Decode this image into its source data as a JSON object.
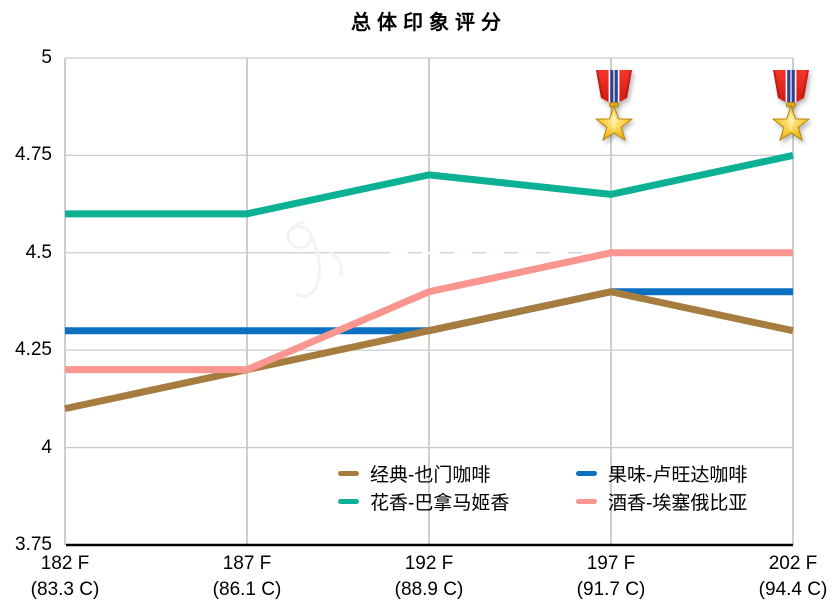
{
  "chart_data": {
    "type": "line",
    "title": "总体印象评分",
    "categories": [
      "182 F",
      "187 F",
      "192 F",
      "197 F",
      "202 F"
    ],
    "categories_sub": [
      "(83.3 C)",
      "(86.1 C)",
      "(88.9 C)",
      "(91.7 C)",
      "(94.4 C)"
    ],
    "xlabel": "",
    "ylabel": "",
    "ylim": [
      3.75,
      5
    ],
    "y_ticks": [
      "5",
      "4.75",
      "4.5",
      "4.25",
      "4",
      "3.75"
    ],
    "grid": true,
    "legend_position": "inside-bottom",
    "series": [
      {
        "name": "经典-也门咖啡",
        "color": "#a77c3f",
        "values": [
          4.1,
          4.2,
          4.3,
          4.4,
          4.3
        ]
      },
      {
        "name": "果味-卢旺达咖啡",
        "color": "#0b70c0",
        "values": [
          4.3,
          4.3,
          4.3,
          4.4,
          4.4
        ]
      },
      {
        "name": "花香-巴拿马姬香",
        "color": "#0cb194",
        "values": [
          4.6,
          4.6,
          4.7,
          4.65,
          4.75
        ]
      },
      {
        "name": "酒香-埃塞俄比亚",
        "color": "#fa968f",
        "values": [
          4.2,
          4.2,
          4.4,
          4.5,
          4.5
        ]
      }
    ],
    "z_order": [
      1,
      0,
      3,
      2
    ],
    "annotations": [
      {
        "type": "gold-medal",
        "category": "197 F",
        "position": "top"
      },
      {
        "type": "gold-medal",
        "category": "202 F",
        "position": "top"
      }
    ]
  },
  "colors": {
    "grid": "#c9c9c9",
    "axis": "#000000",
    "background": "#ffffff",
    "text": "#000000"
  }
}
